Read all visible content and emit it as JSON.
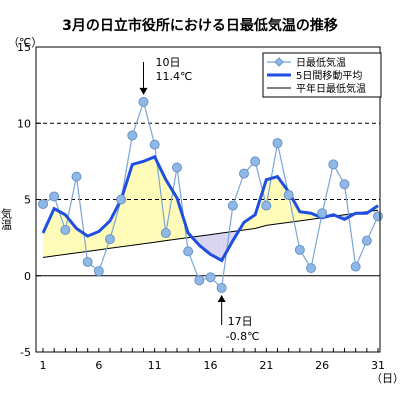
{
  "chart_data": {
    "type": "line",
    "title": "3月の日立市役所における日最低気温の推移",
    "y_unit": "（℃）",
    "ylabel": "気温",
    "x_unit": "（日）",
    "ylim": [
      -5,
      15
    ],
    "yticks": [
      -5,
      0,
      5,
      10,
      15
    ],
    "xlim": [
      1,
      31
    ],
    "xticks": [
      1,
      6,
      11,
      16,
      21,
      26,
      31
    ],
    "grid": "horizontal dashed at 5, 10",
    "legend_position": "top-right",
    "x": [
      1,
      2,
      3,
      4,
      5,
      6,
      7,
      8,
      9,
      10,
      11,
      12,
      13,
      14,
      15,
      16,
      17,
      18,
      19,
      20,
      21,
      22,
      23,
      24,
      25,
      26,
      27,
      28,
      29,
      30,
      31
    ],
    "series": [
      {
        "name": "日最低気温",
        "color": "#7aa6d6",
        "marker": "diamond",
        "values": [
          4.7,
          5.2,
          3.0,
          6.5,
          0.9,
          0.3,
          2.4,
          5.0,
          9.2,
          11.4,
          8.6,
          2.8,
          7.1,
          1.6,
          -0.3,
          -0.1,
          -0.8,
          4.6,
          6.7,
          7.5,
          4.6,
          8.7,
          5.3,
          1.7,
          0.5,
          4.1,
          7.3,
          6.0,
          0.6,
          2.3,
          3.9
        ]
      },
      {
        "name": "5日間移動平均",
        "color": "#1f4fe0",
        "values": [
          2.8,
          4.4,
          4.0,
          3.1,
          2.6,
          2.9,
          3.6,
          5.0,
          7.3,
          7.5,
          7.8,
          6.3,
          5.1,
          2.8,
          2.0,
          1.4,
          1.0,
          2.3,
          3.5,
          4.0,
          6.3,
          6.5,
          5.5,
          4.2,
          4.1,
          3.8,
          4.0,
          3.7,
          4.1,
          4.1,
          4.6
        ]
      },
      {
        "name": "平年日最低気温",
        "color": "#000000",
        "values": [
          1.2,
          1.3,
          1.4,
          1.5,
          1.6,
          1.7,
          1.8,
          1.9,
          2.0,
          2.1,
          2.2,
          2.3,
          2.4,
          2.5,
          2.6,
          2.7,
          2.8,
          2.9,
          3.0,
          3.1,
          3.3,
          3.4,
          3.5,
          3.6,
          3.7,
          3.8,
          3.9,
          4.0,
          4.1,
          4.2,
          4.3
        ]
      }
    ],
    "fill_above_color": "#fffbb8",
    "fill_below_color": "#d9d5f0",
    "annotations": [
      {
        "day": 10,
        "value": 11.4,
        "date_text": "10日",
        "value_text": "11.4℃",
        "position": "above"
      },
      {
        "day": 17,
        "value": -0.8,
        "date_text": "17日",
        "value_text": "-0.8℃",
        "position": "below"
      }
    ]
  }
}
